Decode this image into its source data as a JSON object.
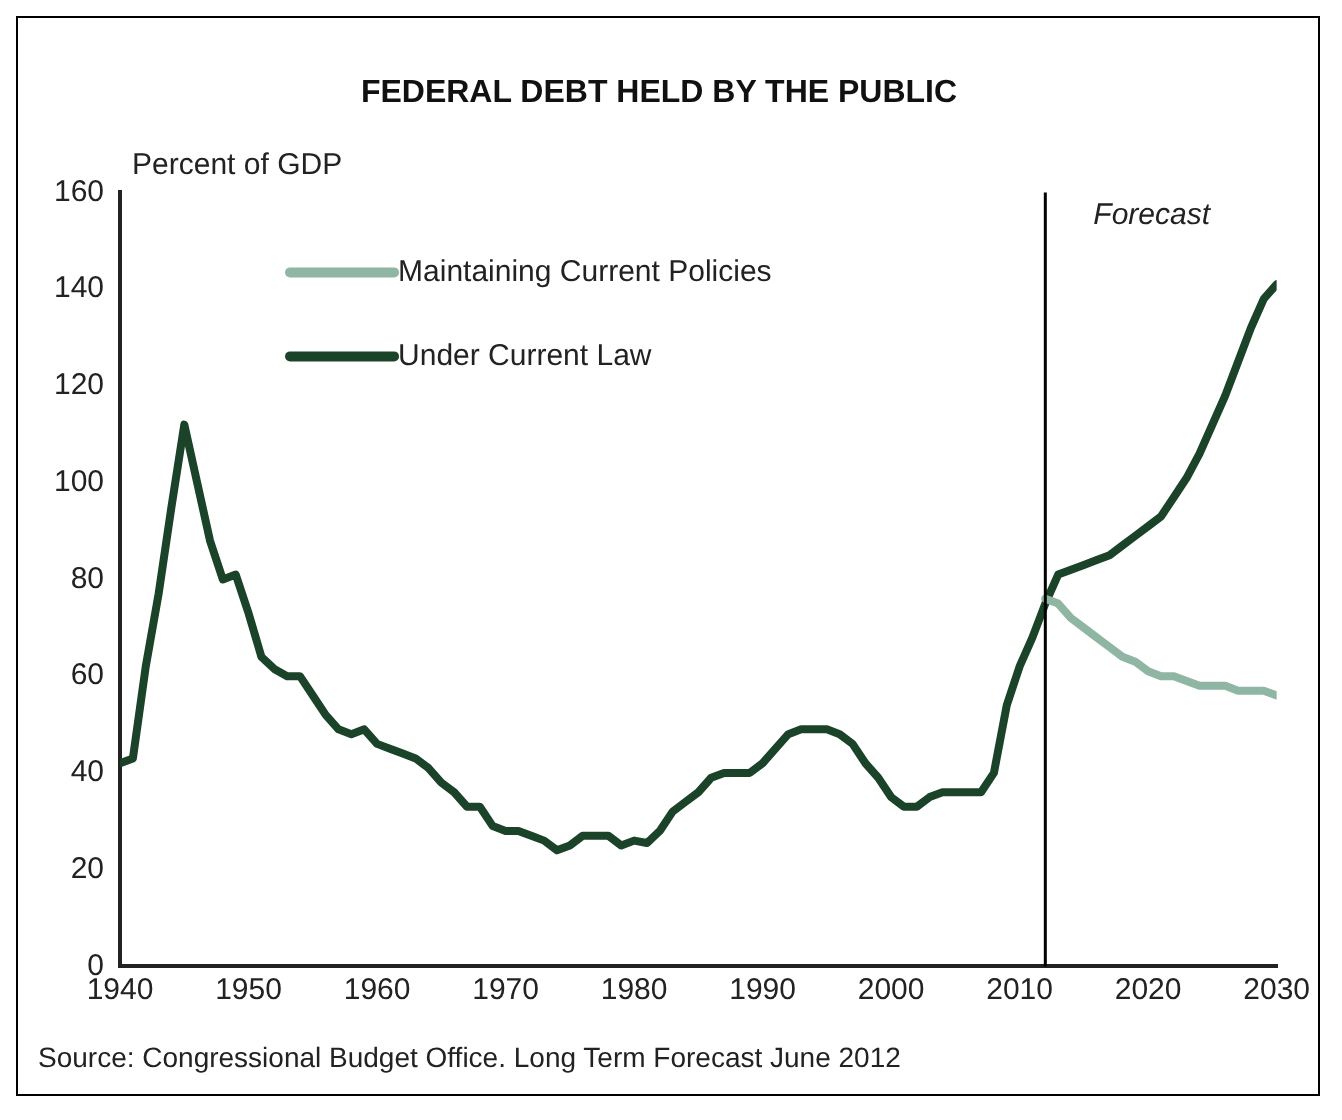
{
  "chart_data": {
    "type": "line",
    "title": "FEDERAL DEBT HELD BY THE PUBLIC",
    "ylabel": "Percent of GDP",
    "annotations": [
      "Source: Congressional Budget Office. Long Term Forecast June 2012"
    ],
    "xlim": [
      1940,
      2030
    ],
    "xticks": [
      1940,
      1950,
      1960,
      1970,
      1980,
      1990,
      2000,
      2010,
      2020,
      2030
    ],
    "ylim": [
      0,
      160
    ],
    "yticks": [
      0,
      20,
      40,
      60,
      80,
      100,
      120,
      140,
      160
    ],
    "grid": false,
    "legend": "top left",
    "marker": "none",
    "line_style": "solid",
    "ref_lines": [
      {
        "axis": "x",
        "value": 2012,
        "label": "Forecast",
        "color": "#000000"
      }
    ],
    "series": [
      {
        "name": "Maintaining Current Policies",
        "color": "#8fb5a3",
        "x": [
          2012,
          2013,
          2014,
          2015,
          2016,
          2017,
          2018,
          2019,
          2020,
          2021,
          2022,
          2023,
          2024,
          2025,
          2026,
          2027,
          2028,
          2029,
          2030
        ],
        "values": [
          76,
          75,
          72,
          70,
          68,
          66,
          64,
          63,
          61,
          60,
          60,
          59,
          58,
          58,
          58,
          57,
          57,
          57,
          56
        ]
      },
      {
        "name": "Under Current Law",
        "color": "#1a4329",
        "x": [
          1940,
          1941,
          1942,
          1943,
          1944,
          1945,
          1946,
          1947,
          1948,
          1949,
          1950,
          1951,
          1952,
          1953,
          1954,
          1955,
          1956,
          1957,
          1958,
          1959,
          1960,
          1961,
          1962,
          1963,
          1964,
          1965,
          1966,
          1967,
          1968,
          1969,
          1970,
          1971,
          1972,
          1973,
          1974,
          1975,
          1976,
          1977,
          1978,
          1979,
          1980,
          1981,
          1982,
          1983,
          1984,
          1985,
          1986,
          1987,
          1988,
          1989,
          1990,
          1991,
          1992,
          1993,
          1994,
          1995,
          1996,
          1997,
          1998,
          1999,
          2000,
          2001,
          2002,
          2003,
          2004,
          2005,
          2006,
          2007,
          2008,
          2009,
          2010,
          2011,
          2012,
          2013,
          2014,
          2015,
          2016,
          2017,
          2018,
          2019,
          2020,
          2021,
          2022,
          2023,
          2024,
          2025,
          2026,
          2027,
          2028,
          2029,
          2030
        ],
        "values": [
          42,
          43,
          62,
          77,
          95,
          112,
          100,
          88,
          80,
          81,
          73,
          64,
          61.5,
          60,
          60,
          56,
          52,
          49,
          48,
          49,
          46,
          45,
          44,
          43,
          41,
          38,
          36,
          33,
          33,
          29,
          28,
          28,
          27,
          26,
          24,
          25,
          27,
          27,
          27,
          25,
          26,
          25.5,
          28,
          32,
          34,
          36,
          39,
          40,
          40,
          40,
          42,
          45,
          48,
          49,
          49,
          49,
          48,
          46,
          42,
          39,
          35,
          33,
          33,
          35,
          36,
          36,
          36,
          36,
          40,
          54,
          62,
          68,
          75,
          81,
          82,
          83,
          84,
          85,
          87,
          89,
          91,
          93,
          97,
          101,
          106,
          112,
          118,
          125,
          132,
          138,
          141
        ]
      }
    ]
  }
}
